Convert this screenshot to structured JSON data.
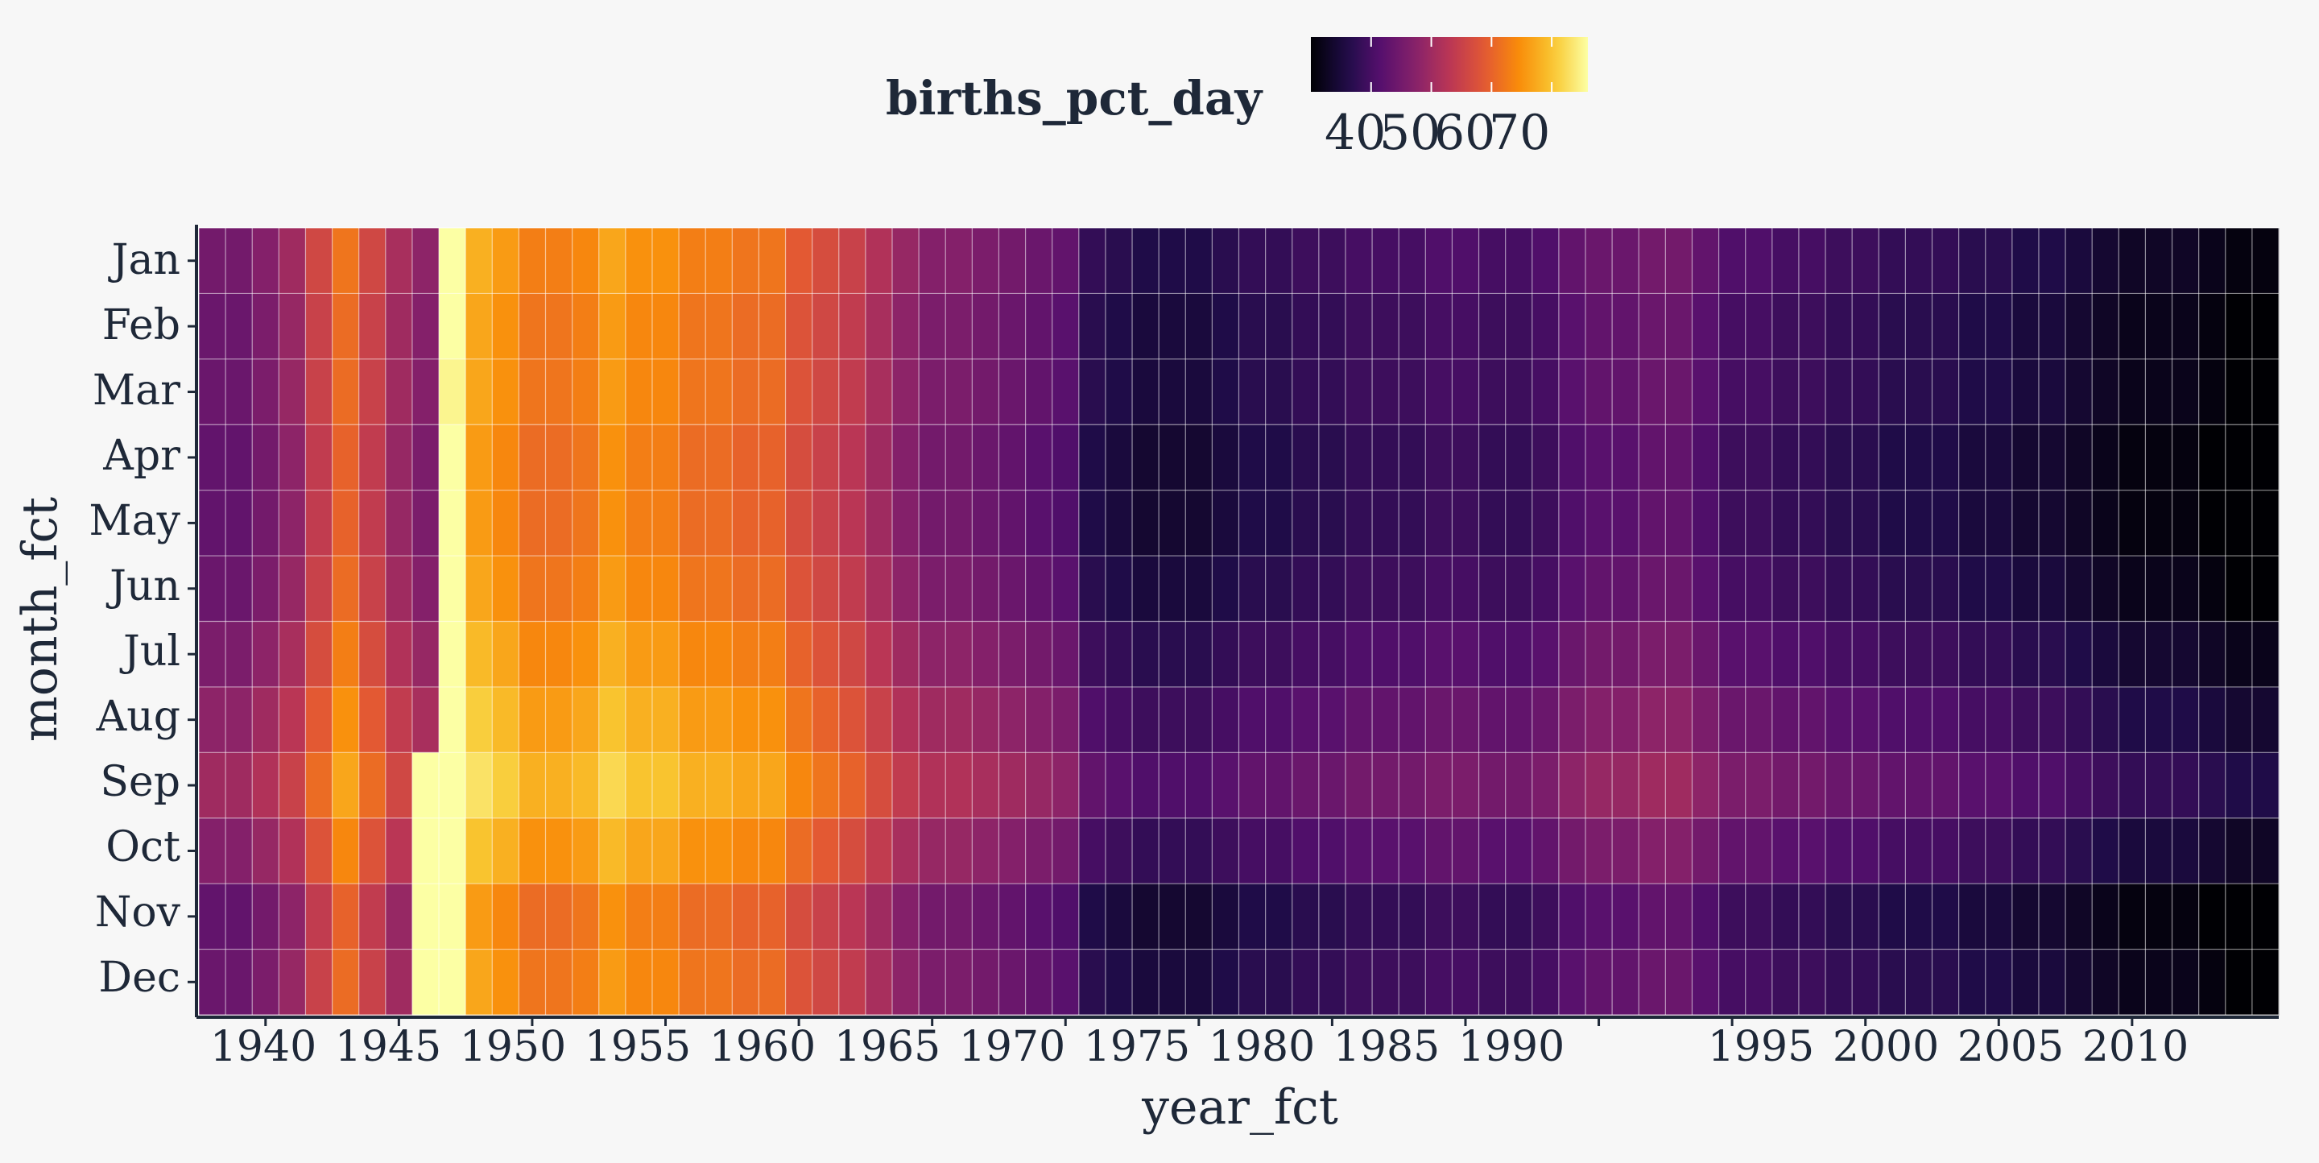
{
  "chart_data": {
    "type": "heatmap",
    "xlabel": "year_fct",
    "ylabel": "month_fct",
    "legend": {
      "title": "births_pct_day",
      "ticks": [
        40,
        50,
        60,
        70
      ],
      "placement": "top",
      "colormap": "inferno",
      "range": [
        30,
        76
      ]
    },
    "x_tick_labels": [
      "1940",
      "1945",
      "1950",
      "1955",
      "1960",
      "1965",
      "1970",
      "1975",
      "1980",
      "1985",
      "1990",
      "1995",
      "2000",
      "2005",
      "2010"
    ],
    "months": [
      "Jan",
      "Feb",
      "Mar",
      "Apr",
      "May",
      "Jun",
      "Jul",
      "Aug",
      "Sep",
      "Oct",
      "Nov",
      "Dec"
    ],
    "years": [
      1938,
      1939,
      1940,
      1941,
      1942,
      1943,
      1944,
      1945,
      1946,
      1947,
      1948,
      1949,
      1950,
      1951,
      1952,
      1953,
      1954,
      1955,
      1956,
      1957,
      1958,
      1959,
      1960,
      1961,
      1962,
      1963,
      1964,
      1965,
      1966,
      1967,
      1968,
      1969,
      1970,
      1971,
      1972,
      1973,
      1974,
      1975,
      1976,
      1977,
      1978,
      1979,
      1980,
      1981,
      1982,
      1983,
      1984,
      1985,
      1986,
      1987,
      1988,
      1989,
      1990,
      1991,
      1992,
      1993,
      1994,
      1995,
      1996,
      1997,
      1998,
      1999,
      2000,
      2001,
      2002,
      2003,
      2004,
      2005,
      2006,
      2007,
      2008,
      2009,
      2010,
      2011,
      2012,
      2013,
      2014,
      2015
    ],
    "year_values": [
      45,
      45,
      47,
      50,
      56,
      62,
      56,
      51,
      48,
      80,
      68,
      66,
      63,
      63,
      64,
      67,
      65,
      65,
      63,
      63,
      62,
      62,
      59,
      57,
      55,
      52,
      49,
      47,
      47,
      46,
      45,
      44,
      43,
      38,
      37,
      36,
      36,
      36,
      37,
      38,
      38,
      39,
      39,
      40,
      40,
      40,
      41,
      41,
      40,
      40,
      41,
      43,
      44,
      44,
      45,
      45,
      43,
      41,
      41,
      40,
      40,
      39,
      39,
      38,
      38,
      38,
      37,
      37,
      36,
      36,
      35,
      34,
      33,
      33,
      33,
      32,
      31,
      31
    ],
    "month_offsets": [
      0,
      -1,
      -1,
      -2,
      -2,
      -1,
      1,
      3,
      5,
      2,
      -2,
      -1
    ],
    "overrides": [
      {
        "year": 1946,
        "month": "Sep",
        "value": 77
      },
      {
        "year": 1946,
        "month": "Oct",
        "value": 78
      },
      {
        "year": 1946,
        "month": "Nov",
        "value": 78
      },
      {
        "year": 1946,
        "month": "Dec",
        "value": 78
      },
      {
        "year": 1947,
        "month": "Jan",
        "value": 78
      },
      {
        "year": 1947,
        "month": "Feb",
        "value": 76
      },
      {
        "year": 1947,
        "month": "Mar",
        "value": 75
      }
    ]
  }
}
